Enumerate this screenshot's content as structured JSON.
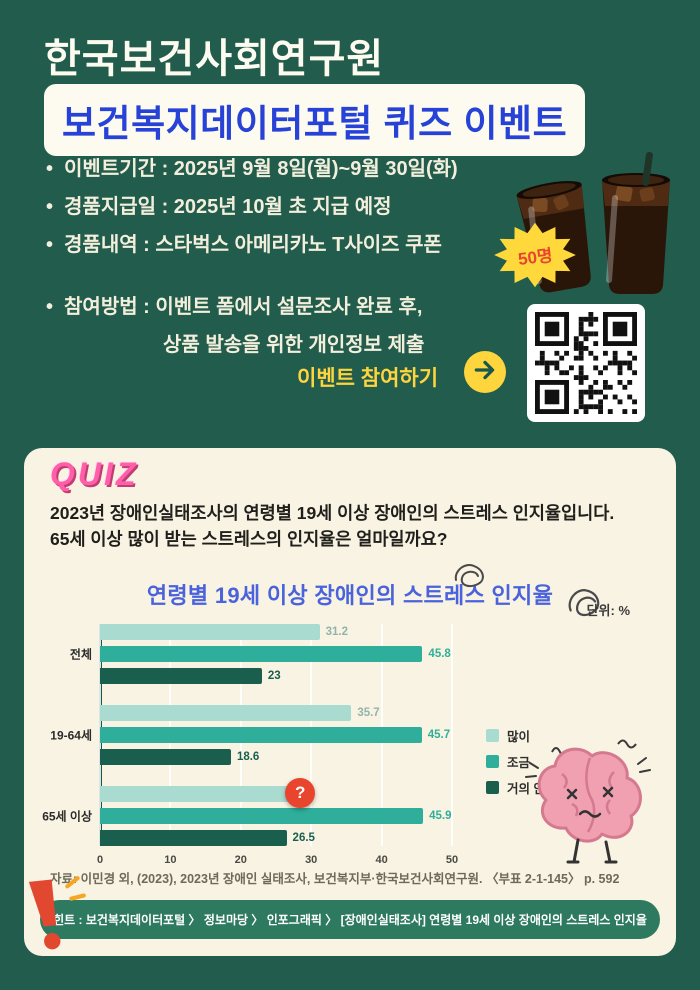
{
  "poster": {
    "org_title": "한국보건사회연구원",
    "event_title": "보건복지데이터포털 퀴즈 이벤트",
    "bullets": [
      "이벤트기간 : 2025년 9월 8일(월)~9월 30일(화)",
      "경품지급일 : 2025년 10월 초 지급 예정",
      "경품내역 : 스타벅스 아메리카노 T사이즈 쿠폰"
    ],
    "participation_line1": "참여방법 : 이벤트 폼에서 설문조사 완료 후,",
    "participation_line2": "상품 발송을 위한 개인정보 제출",
    "winners_badge": "50명",
    "cta_label": "이벤트 참여하기"
  },
  "quiz": {
    "logo": "QUIZ",
    "question_line1": "2023년 장애인실태조사의 연령별 19세 이상 장애인의 스트레스 인지율입니다.",
    "question_line2": "65세 이상 많이 받는 스트레스의 인지율은 얼마일까요?",
    "unit_label": "단위: %",
    "source": "자료: 이민경 외, (2023), 2023년 장애인 실태조사, 보건복지부·한국보건사회연구원.   〈부표 2-1-145〉 p. 592",
    "hint": "힌트 : 보건복지데이터포털 〉 정보마당 〉 인포그래픽 〉 [장애인실태조사] 연령별 19세 이상 장애인의 스트레스 인지율"
  },
  "chart_data": {
    "type": "bar",
    "orientation": "horizontal",
    "title": "연령별 19세 이상 장애인의 스트레스 인지율",
    "unit": "%",
    "categories": [
      "전체",
      "19-64세",
      "65세 이상"
    ],
    "series": [
      {
        "name": "많이",
        "color": "#A9DBD1",
        "label_color": "#93B4AC",
        "values": [
          31.2,
          35.7,
          30
        ],
        "labels": [
          "31.2",
          "35.7",
          "?"
        ]
      },
      {
        "name": "조금",
        "color": "#2FAF9B",
        "label_color": "#2FAF9B",
        "values": [
          45.8,
          45.7,
          45.9
        ],
        "labels": [
          "45.8",
          "45.7",
          "45.9"
        ]
      },
      {
        "name": "거의 안느낌",
        "color": "#1A5F4E",
        "label_color": "#1A5F4E",
        "values": [
          23,
          18.6,
          26.5
        ],
        "labels": [
          "23",
          "18.6",
          "26.5"
        ]
      }
    ],
    "xlim": [
      0,
      50
    ],
    "xticks": [
      "0",
      "10",
      "20",
      "30",
      "40",
      "50"
    ],
    "masked_point": {
      "category": "65세 이상",
      "series": "많이",
      "display": "?"
    },
    "legend_position": "right",
    "grid": true
  },
  "colors": {
    "background_green": "#215C4D",
    "accent_yellow": "#FFD53E",
    "title_blue": "#2742D7",
    "chart_title_blue": "#4A63DC",
    "card_bg": "#F8F3E2",
    "quiz_pink": "#FF5FA8",
    "alert_red": "#E8442E",
    "hint_green": "#2E7A61"
  }
}
